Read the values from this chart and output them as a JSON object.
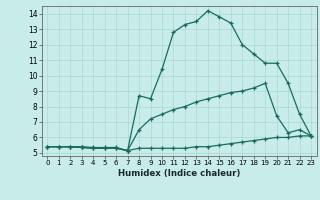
{
  "title": "",
  "xlabel": "Humidex (Indice chaleur)",
  "xlim_min": -0.5,
  "xlim_max": 23.5,
  "ylim_min": 4.8,
  "ylim_max": 14.5,
  "xticks": [
    0,
    1,
    2,
    3,
    4,
    5,
    6,
    7,
    8,
    9,
    10,
    11,
    12,
    13,
    14,
    15,
    16,
    17,
    18,
    19,
    20,
    21,
    22,
    23
  ],
  "yticks": [
    5,
    6,
    7,
    8,
    9,
    10,
    11,
    12,
    13,
    14
  ],
  "bg_color": "#c8ecea",
  "line_color": "#1a6b5f",
  "line1_x": [
    0,
    1,
    2,
    3,
    4,
    5,
    6,
    7,
    8,
    9,
    10,
    11,
    12,
    13,
    14,
    15,
    16,
    17,
    18,
    19,
    20,
    21,
    22,
    23
  ],
  "line1_y": [
    5.4,
    5.4,
    5.4,
    5.4,
    5.35,
    5.35,
    5.35,
    5.15,
    5.3,
    5.3,
    5.3,
    5.3,
    5.3,
    5.4,
    5.4,
    5.5,
    5.6,
    5.7,
    5.8,
    5.9,
    6.0,
    6.0,
    6.1,
    6.1
  ],
  "line2_x": [
    0,
    1,
    2,
    3,
    4,
    5,
    6,
    7,
    8,
    9,
    10,
    11,
    12,
    13,
    14,
    15,
    16,
    17,
    18,
    19,
    20,
    21,
    22,
    23
  ],
  "line2_y": [
    5.4,
    5.4,
    5.4,
    5.35,
    5.3,
    5.3,
    5.3,
    5.15,
    6.5,
    7.2,
    7.5,
    7.8,
    8.0,
    8.3,
    8.5,
    8.7,
    8.9,
    9.0,
    9.2,
    9.5,
    7.4,
    6.3,
    6.5,
    6.1
  ],
  "line3_x": [
    0,
    1,
    2,
    3,
    4,
    5,
    6,
    7,
    8,
    9,
    10,
    11,
    12,
    13,
    14,
    15,
    16,
    17,
    18,
    19,
    20,
    21,
    22,
    23
  ],
  "line3_y": [
    5.4,
    5.4,
    5.4,
    5.35,
    5.3,
    5.3,
    5.3,
    5.15,
    8.7,
    8.5,
    10.4,
    12.8,
    13.3,
    13.5,
    14.2,
    13.8,
    13.4,
    12.0,
    11.4,
    10.8,
    10.8,
    9.5,
    7.5,
    6.1
  ]
}
